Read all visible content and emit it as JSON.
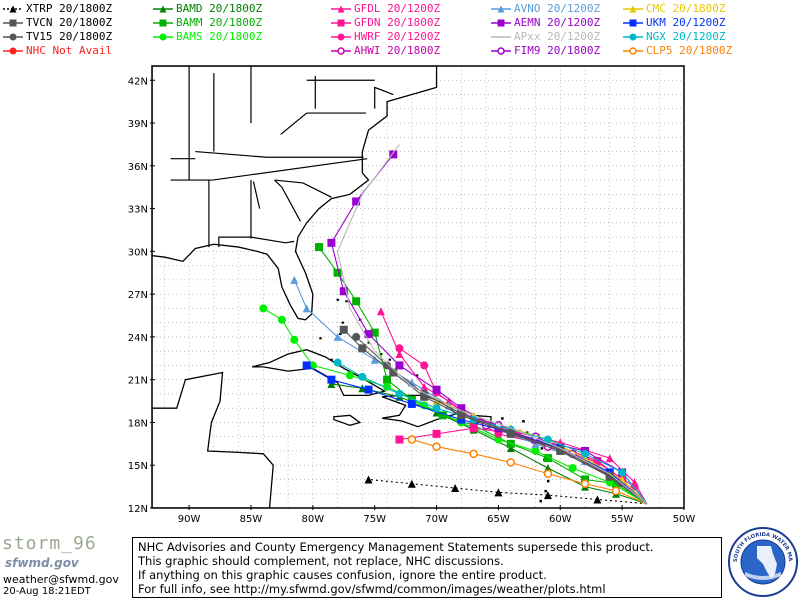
{
  "legend": [
    {
      "label": "XTRP 20/1800Z",
      "color": "#000000",
      "marker": "triangle",
      "dashed": true
    },
    {
      "label": "TVCN 20/1800Z",
      "color": "#555555",
      "marker": "square"
    },
    {
      "label": "TV15 20/1800Z",
      "color": "#555555",
      "marker": "circle"
    },
    {
      "label": "NHC Not Avail",
      "color": "#ff2020",
      "marker": "circle"
    },
    {
      "label": "BAMD 20/1800Z",
      "color": "#008000",
      "marker": "triangle"
    },
    {
      "label": "BAMM 20/1800Z",
      "color": "#00b000",
      "marker": "square"
    },
    {
      "label": "BAMS 20/1800Z",
      "color": "#00ee00",
      "marker": "circle"
    },
    {
      "label": "GFDL 20/1200Z",
      "color": "#ff1493",
      "marker": "triangle"
    },
    {
      "label": "GFDN 20/1800Z",
      "color": "#ff1493",
      "marker": "square"
    },
    {
      "label": "HWRF 20/1200Z",
      "color": "#ff1493",
      "marker": "circle"
    },
    {
      "label": "AHWI 20/1800Z",
      "color": "#cc00aa",
      "marker": "open-circle"
    },
    {
      "label": "AVNO 20/1200Z",
      "color": "#5a9cdc",
      "marker": "triangle"
    },
    {
      "label": "AEMN 20/1200Z",
      "color": "#9b00d0",
      "marker": "square"
    },
    {
      "label": "APxx 20/1200Z",
      "color": "#b8b8b8",
      "marker": "none"
    },
    {
      "label": "FIM9 20/1800Z",
      "color": "#9b00d0",
      "marker": "open-circle"
    },
    {
      "label": "CMC 20/1800Z",
      "color": "#e8c800",
      "marker": "triangle"
    },
    {
      "label": "UKM 20/1200Z",
      "color": "#0030ff",
      "marker": "square"
    },
    {
      "label": "NGX 20/1200Z",
      "color": "#00b8c8",
      "marker": "circle"
    },
    {
      "label": "CLP5 20/1800Z",
      "color": "#ff8000",
      "marker": "open-circle"
    }
  ],
  "map": {
    "lon_range": [
      -93,
      -50
    ],
    "lat_range": [
      12,
      43
    ],
    "lat_ticks": [
      {
        "v": 42,
        "label": "42N"
      },
      {
        "v": 39,
        "label": "39N"
      },
      {
        "v": 36,
        "label": "36N"
      },
      {
        "v": 33,
        "label": "33N"
      },
      {
        "v": 30,
        "label": "30N"
      },
      {
        "v": 27,
        "label": "27N"
      },
      {
        "v": 24,
        "label": "24N"
      },
      {
        "v": 21,
        "label": "21N"
      },
      {
        "v": 18,
        "label": "18N"
      },
      {
        "v": 15,
        "label": "15N"
      },
      {
        "v": 12,
        "label": "12N"
      }
    ],
    "lon_ticks": [
      {
        "v": -90,
        "label": "90W"
      },
      {
        "v": -85,
        "label": "85W"
      },
      {
        "v": -80,
        "label": "80W"
      },
      {
        "v": -75,
        "label": "75W"
      },
      {
        "v": -70,
        "label": "70W"
      },
      {
        "v": -65,
        "label": "65W"
      },
      {
        "v": -60,
        "label": "60W"
      },
      {
        "v": -55,
        "label": "55W"
      },
      {
        "v": -50,
        "label": "50W"
      }
    ],
    "tracks": [
      {
        "model": "XTRP",
        "color": "#000000",
        "dashed": true,
        "marker": "triangle",
        "pts": [
          [
            -53,
            12.3
          ],
          [
            -57,
            12.6
          ],
          [
            -61,
            12.9
          ],
          [
            -65,
            13.1
          ],
          [
            -68.5,
            13.4
          ],
          [
            -72,
            13.7
          ],
          [
            -75.5,
            14
          ]
        ]
      },
      {
        "model": "BAMD",
        "color": "#008000",
        "marker": "triangle",
        "pts": [
          [
            -53,
            12.3
          ],
          [
            -55.5,
            13
          ],
          [
            -58,
            13.5
          ],
          [
            -61,
            14.8
          ],
          [
            -64,
            16.2
          ],
          [
            -67,
            17.5
          ],
          [
            -70,
            18.7
          ],
          [
            -73,
            19.8
          ],
          [
            -76,
            20.4
          ],
          [
            -78.5,
            20.7
          ]
        ]
      },
      {
        "model": "BAMM",
        "color": "#00b000",
        "marker": "square",
        "pts": [
          [
            -53,
            12.3
          ],
          [
            -55.5,
            13.7
          ],
          [
            -58,
            14
          ],
          [
            -61,
            15.5
          ],
          [
            -64,
            16.5
          ],
          [
            -67,
            17.8
          ],
          [
            -69.5,
            18.5
          ],
          [
            -72,
            19.6
          ],
          [
            -74,
            21
          ],
          [
            -75,
            24.3
          ],
          [
            -76.5,
            26.5
          ],
          [
            -78,
            28.5
          ],
          [
            -79.5,
            30.3
          ]
        ]
      },
      {
        "model": "BAMS",
        "color": "#00ee00",
        "marker": "circle",
        "pts": [
          [
            -53,
            12.3
          ],
          [
            -56,
            13.8
          ],
          [
            -59,
            14.8
          ],
          [
            -62,
            16
          ],
          [
            -65,
            16.8
          ],
          [
            -68,
            18
          ],
          [
            -71,
            19.2
          ],
          [
            -74,
            20.5
          ],
          [
            -77,
            21.3
          ],
          [
            -80,
            22
          ],
          [
            -81.5,
            23.8
          ],
          [
            -82.5,
            25.2
          ],
          [
            -84,
            26
          ]
        ]
      },
      {
        "model": "GFDL",
        "color": "#ff1493",
        "marker": "triangle",
        "pts": [
          [
            -53,
            12.3
          ],
          [
            -54,
            13.8
          ],
          [
            -56,
            15.5
          ],
          [
            -60,
            16.6
          ],
          [
            -64,
            17.4
          ],
          [
            -67,
            18.2
          ],
          [
            -69,
            19.5
          ],
          [
            -71,
            20.5
          ],
          [
            -73,
            22.8
          ],
          [
            -74.5,
            25.8
          ]
        ]
      },
      {
        "model": "GFDN",
        "color": "#ff1493",
        "marker": "square",
        "pts": [
          [
            -53,
            12.3
          ],
          [
            -55,
            14
          ],
          [
            -57,
            15.3
          ],
          [
            -60,
            16.3
          ],
          [
            -63.5,
            17.2
          ],
          [
            -67,
            17.6
          ],
          [
            -70,
            17.2
          ],
          [
            -73,
            16.8
          ]
        ]
      },
      {
        "model": "HWRF",
        "color": "#ff1493",
        "marker": "circle",
        "pts": [
          [
            -53,
            12.3
          ],
          [
            -54,
            13.5
          ],
          [
            -57,
            15.2
          ],
          [
            -61,
            16.4
          ],
          [
            -65,
            17.2
          ],
          [
            -68,
            18.8
          ],
          [
            -70,
            20.1
          ],
          [
            -71,
            22
          ],
          [
            -73,
            23.2
          ]
        ]
      },
      {
        "model": "AVNO",
        "color": "#5a9cdc",
        "marker": "triangle",
        "pts": [
          [
            -53,
            12.3
          ],
          [
            -55,
            14
          ],
          [
            -58,
            15.3
          ],
          [
            -62,
            16.5
          ],
          [
            -66,
            17.8
          ],
          [
            -69,
            19.2
          ],
          [
            -72,
            20.8
          ],
          [
            -75,
            22.4
          ],
          [
            -78,
            24
          ],
          [
            -80.5,
            26
          ],
          [
            -81.5,
            28
          ]
        ]
      },
      {
        "model": "AEMN",
        "color": "#9b00d0",
        "marker": "square",
        "pts": [
          [
            -53,
            12.3
          ],
          [
            -55,
            14.5
          ],
          [
            -58,
            16
          ],
          [
            -62,
            16.8
          ],
          [
            -65,
            17.6
          ],
          [
            -68,
            19
          ],
          [
            -70,
            20.3
          ],
          [
            -73,
            22
          ],
          [
            -75.5,
            24.2
          ],
          [
            -77.5,
            27.2
          ],
          [
            -78.5,
            30.6
          ],
          [
            -76.5,
            33.5
          ],
          [
            -73.5,
            36.8
          ]
        ]
      },
      {
        "model": "FIM9",
        "color": "#9b00d0",
        "marker": "open-circle",
        "pts": [
          [
            -53,
            12.3
          ],
          [
            -56,
            14.2
          ],
          [
            -59,
            15.8
          ],
          [
            -62,
            17
          ],
          [
            -65,
            17.8
          ],
          [
            -68,
            18.6
          ]
        ]
      },
      {
        "model": "AHWI",
        "color": "#cc00aa",
        "marker": "open-circle",
        "pts": [
          [
            -53,
            12.3
          ],
          [
            -55,
            13.8
          ],
          [
            -58,
            15.4
          ],
          [
            -61,
            16.3
          ],
          [
            -64,
            17.3
          ],
          [
            -66,
            17.8
          ]
        ]
      },
      {
        "model": "CMC",
        "color": "#e8c800",
        "marker": "triangle",
        "pts": [
          [
            -53,
            12.3
          ],
          [
            -55,
            14
          ],
          [
            -58,
            15.5
          ],
          [
            -61,
            16.8
          ],
          [
            -64,
            17.6
          ],
          [
            -67,
            18.5
          ],
          [
            -70,
            19.5
          ]
        ]
      },
      {
        "model": "UKM",
        "color": "#0030ff",
        "marker": "square",
        "pts": [
          [
            -53,
            12.3
          ],
          [
            -56,
            14.5
          ],
          [
            -60,
            16.2
          ],
          [
            -64,
            17.3
          ],
          [
            -68,
            18.2
          ],
          [
            -72,
            19.3
          ],
          [
            -75.5,
            20.3
          ],
          [
            -78.5,
            21
          ],
          [
            -80.5,
            22
          ]
        ]
      },
      {
        "model": "NGX",
        "color": "#00b8c8",
        "marker": "circle",
        "pts": [
          [
            -53,
            12.3
          ],
          [
            -55,
            14.5
          ],
          [
            -58,
            15.8
          ],
          [
            -61,
            16.8
          ],
          [
            -64,
            17.5
          ],
          [
            -67,
            18.2
          ],
          [
            -70,
            19
          ],
          [
            -73,
            20
          ],
          [
            -76,
            21.2
          ],
          [
            -78,
            22.2
          ]
        ]
      },
      {
        "model": "CLP5",
        "color": "#ff8000",
        "marker": "open-circle",
        "pts": [
          [
            -53,
            12.3
          ],
          [
            -55.5,
            13.2
          ],
          [
            -58,
            13.7
          ],
          [
            -61,
            14.4
          ],
          [
            -64,
            15.2
          ],
          [
            -67,
            15.8
          ],
          [
            -70,
            16.3
          ],
          [
            -72,
            16.8
          ]
        ]
      },
      {
        "model": "TVCN",
        "color": "#555555",
        "marker": "square",
        "pts": [
          [
            -53,
            12.3
          ],
          [
            -56,
            14.2
          ],
          [
            -60,
            16
          ],
          [
            -64,
            17.2
          ],
          [
            -68,
            18.5
          ],
          [
            -71,
            19.8
          ],
          [
            -73.5,
            21.5
          ],
          [
            -76,
            23.2
          ],
          [
            -77.5,
            24.5
          ]
        ]
      },
      {
        "model": "TV15",
        "color": "#555555",
        "marker": "circle",
        "pts": [
          [
            -53,
            12.3
          ],
          [
            -56,
            14.3
          ],
          [
            -60,
            16.1
          ],
          [
            -64,
            17.3
          ],
          [
            -68,
            18.6
          ],
          [
            -71,
            20
          ],
          [
            -74,
            22
          ],
          [
            -76.5,
            24
          ]
        ]
      },
      {
        "model": "APxx",
        "color": "#b8b8b8",
        "marker": "none",
        "pts": [
          [
            -53,
            12.3
          ],
          [
            -56,
            14.4
          ],
          [
            -60,
            16.2
          ],
          [
            -64,
            17.6
          ],
          [
            -68,
            18.8
          ],
          [
            -72,
            20.5
          ],
          [
            -75,
            23
          ],
          [
            -77,
            26
          ],
          [
            -78,
            30
          ],
          [
            -76,
            34
          ],
          [
            -73,
            37.5
          ]
        ]
      }
    ]
  },
  "footer": {
    "title": "storm_96",
    "agency": "sfwmd.gov",
    "email": "weather@sfwmd.gov",
    "timestamp": "20-Aug 18:21EDT",
    "disclaimer": [
      "NHC Advisories and County Emergency Management Statements supersede this product.",
      "This graphic should complement, not replace, NHC discussions.",
      "If anything on this graphic causes confusion, ignore the entire product.",
      "For full info, see  http://my.sfwmd.gov/sfwmd/common/images/weather/plots.html"
    ],
    "seal_text": "SOUTH FLORIDA WATER MANAGEMENT DISTRICT"
  }
}
